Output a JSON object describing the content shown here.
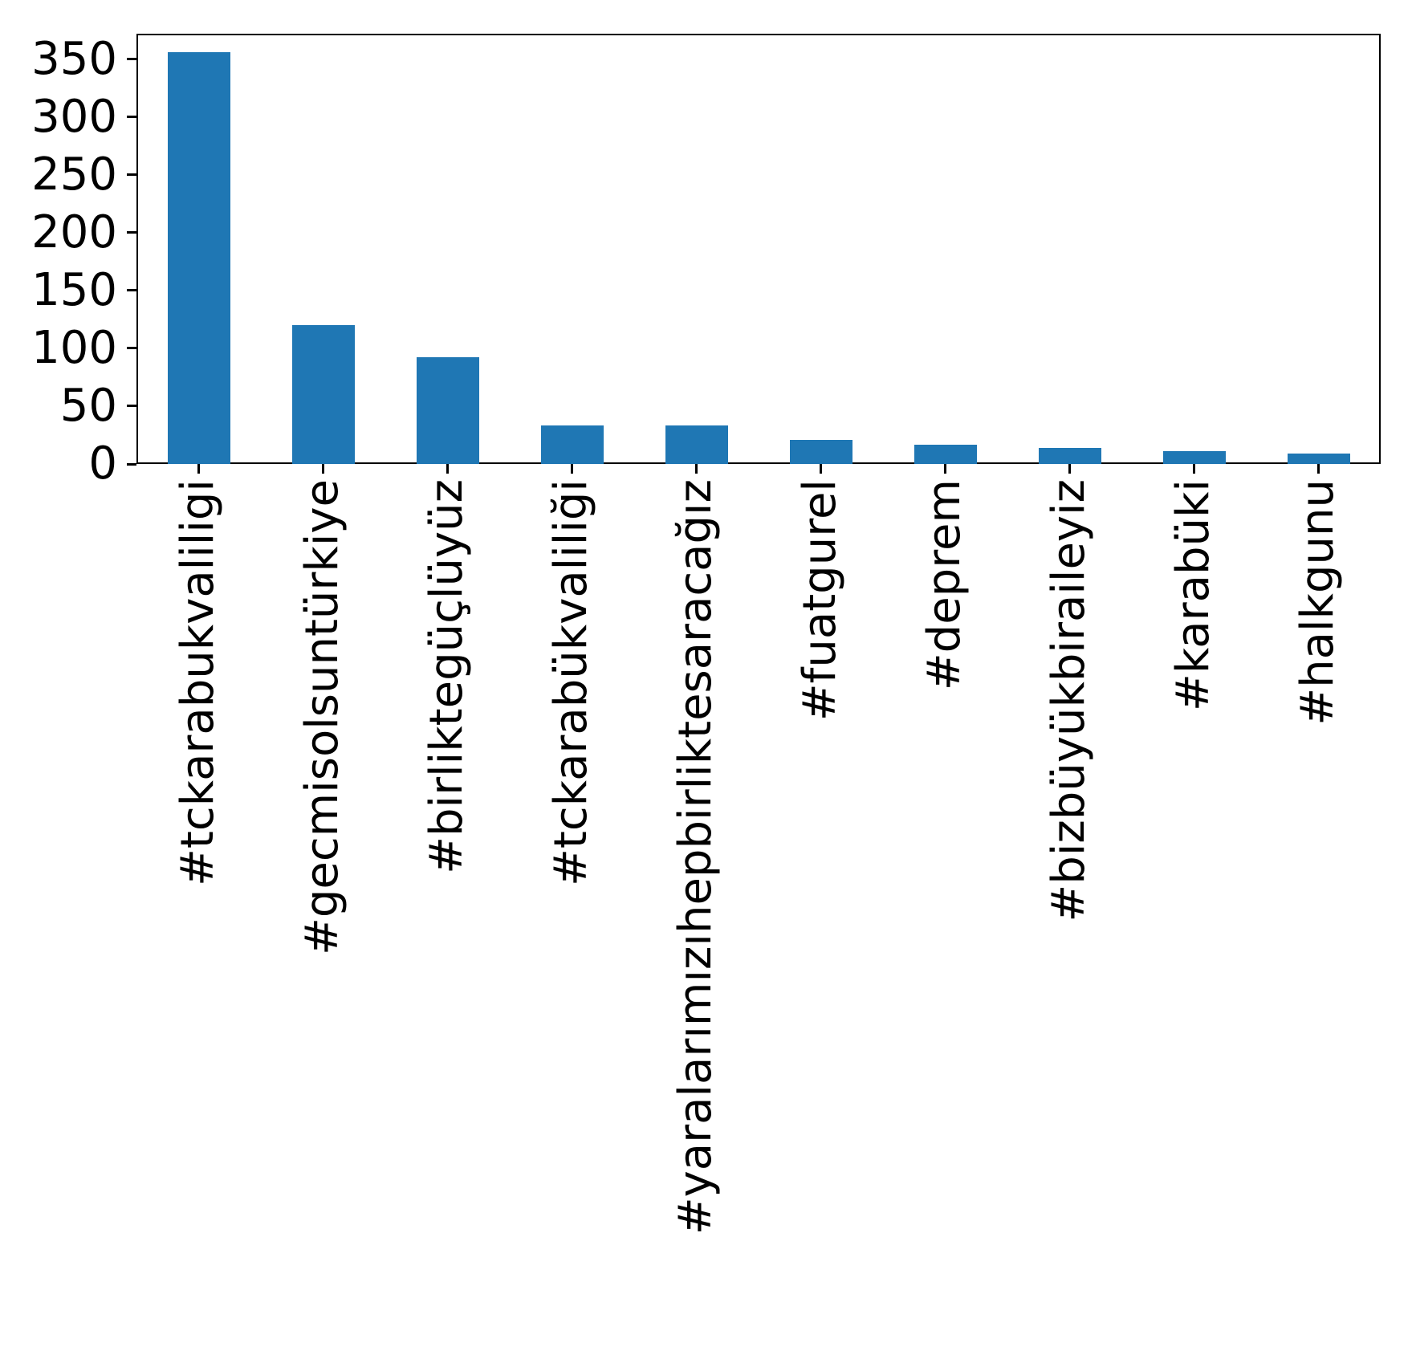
{
  "chart_data": {
    "type": "bar",
    "title": "",
    "xlabel": "",
    "ylabel": "",
    "categories": [
      "#tckarabukvaliligi",
      "#gecmisolsuntürkiye",
      "#birliktegüçlüyüz",
      "#tckarabükvaliliği",
      "#yaralarımızıhepbirliktesaracağız",
      "#fuatgurel",
      "#deprem",
      "#bizbüyükbiraileyiz",
      "#karabüki",
      "#halkgunu"
    ],
    "values": [
      356,
      120,
      92,
      33,
      33,
      21,
      17,
      14,
      11,
      9
    ],
    "yticks": [
      0,
      50,
      100,
      150,
      200,
      250,
      300,
      350
    ],
    "ylim": [
      0,
      372
    ],
    "x_tick_rotation_degrees": 90,
    "grid": false,
    "legend": "none",
    "bar_color": "#1f77b4",
    "axis_color": "#000000",
    "text_color": "#000000",
    "background_color": "#ffffff"
  }
}
